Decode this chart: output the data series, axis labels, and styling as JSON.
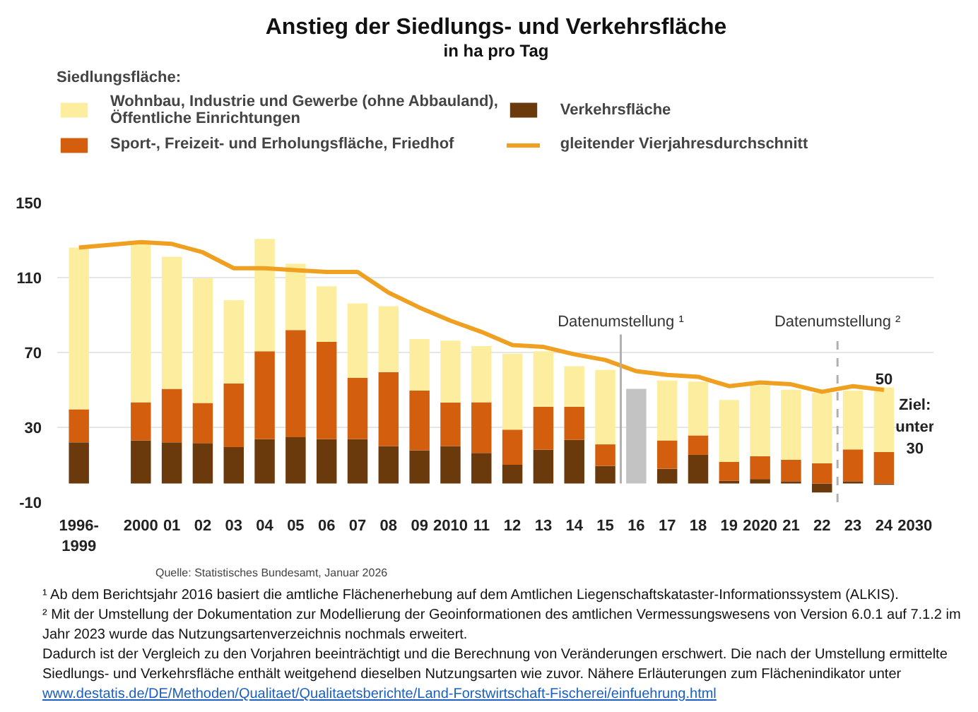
{
  "chart_data": {
    "type": "bar",
    "stacked": true,
    "title": "Anstieg der Siedlungs- und Verkehrsfläche",
    "subtitle": "in ha pro Tag",
    "legend_title": "Siedlungsfläche:",
    "legend": "top",
    "grid": "y",
    "categories": [
      "1996-1999",
      null,
      "2000",
      "01",
      "02",
      "03",
      "04",
      "05",
      "06",
      "07",
      "08",
      "09",
      "2010",
      "11",
      "12",
      "13",
      "14",
      "15",
      "16",
      "17",
      "18",
      "19",
      "2020",
      "21",
      "22",
      "23",
      "24",
      "2030"
    ],
    "ylim": [
      -10,
      150
    ],
    "yticks": [
      -10,
      30,
      70,
      110,
      150
    ],
    "series": [
      {
        "name": "Verkehrsfläche",
        "color": "#6b3a0c",
        "values": [
          22,
          null,
          23,
          22,
          21.6,
          19.4,
          23.7,
          24.7,
          23.7,
          23.7,
          20,
          17.7,
          20,
          16.3,
          10,
          18,
          23.3,
          9.4,
          null,
          7.9,
          15.3,
          1.4,
          2.4,
          1.2,
          -4.8,
          1.2,
          -0.7,
          null
        ]
      },
      {
        "name": "Sport-, Freizeit- und Erholungsfläche, Friedhof",
        "color": "#d35f0e",
        "values": [
          17.6,
          null,
          20.4,
          28.6,
          21.4,
          34,
          47,
          57.3,
          52,
          32.7,
          39.5,
          31.9,
          23.2,
          27.1,
          18.8,
          23,
          17.7,
          11.5,
          null,
          15.1,
          10.4,
          10.1,
          12.2,
          11.5,
          10.8,
          17,
          16.8,
          null
        ]
      },
      {
        "name": "Wohnbau, Industrie und Gewerbe (ohne Abbauland),\nÖffentliche Einrichtungen",
        "color": "#fdee9f",
        "values": [
          86.4,
          null,
          85,
          70.5,
          66.6,
          44.5,
          60,
          35.5,
          29.7,
          39.8,
          35.2,
          27.6,
          33.1,
          30,
          40.5,
          29.7,
          21.6,
          39.8,
          null,
          32,
          28.7,
          33.1,
          37.9,
          37.4,
          37.6,
          31.4,
          34.5,
          null
        ]
      },
      {
        "color": "#c3c3c3",
        "values": [
          null,
          null,
          null,
          null,
          null,
          null,
          null,
          null,
          null,
          null,
          null,
          null,
          null,
          null,
          null,
          null,
          null,
          null,
          50.6,
          null,
          null,
          null,
          null,
          null,
          null,
          null,
          null,
          null
        ]
      },
      {
        "name": "gleitender Vierjahresdurchschnitt",
        "type": "line",
        "color": "#f0a020",
        "values": [
          126,
          null,
          129,
          128,
          123.5,
          115,
          115,
          114,
          113,
          113,
          102,
          94,
          87,
          81,
          74,
          73,
          69,
          66,
          60,
          58,
          57,
          52,
          54,
          53,
          49,
          52,
          50,
          null
        ]
      }
    ],
    "ref_lines": [
      {
        "axis": "x",
        "value": "16",
        "label": "Datenumstellung ¹",
        "color": "#b0b0b0",
        "line_style": "solid"
      },
      {
        "axis": "x",
        "value": "23",
        "label": "Datenumstellung ²",
        "color": "#b0b0b0",
        "line_style": "dashed"
      }
    ],
    "annotations": [
      {
        "text": "50",
        "x": "24",
        "y": 50
      },
      "Ziel:\nunter\n30",
      "Quelle: Statistisches Bundesamt, Januar 2026",
      "¹ Ab dem Berichtsjahr 2016 basiert die amtliche Flächenerhebung auf dem Amtlichen Liegenschaftskataster-Informationssystem (ALKIS).",
      "² Mit der Umstellung der Dokumentation zur Modellierung der Geoinformationen des amtlichen Vermessungswesens von Version 6.0.1 auf 7.1.2 im Jahr 2023 wurde das Nutzungsartenverzeichnis nochmals erweitert.",
      "Dadurch ist der Vergleich zu den Vorjahren beeinträchtigt und die Berechnung von Veränderungen erschwert. Die nach der Umstellung ermittelte Siedlungs- und Verkehrsfläche enthält weitgehend dieselben Nutzungsarten wie zuvor. Nähere Erläuterungen zum Flächenindikator unter",
      "www.destatis.de/DE/Methoden/Qualitaet/Qualitaetsberichte/Land-Forstwirtschaft-Fischerei/einfuehrung.html"
    ]
  }
}
